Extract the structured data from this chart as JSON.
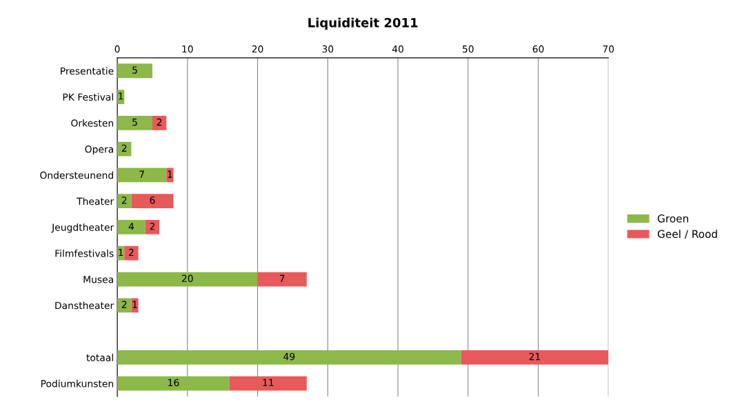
{
  "chart_data": {
    "type": "bar",
    "title": "Liquiditeit 2011",
    "orientation": "horizontal",
    "stacked": true,
    "categories": [
      "Presentatie",
      "PK Festival",
      "Orkesten",
      "Opera",
      "Ondersteunend",
      "Theater",
      "Jeugdtheater",
      "Filmfestivals",
      "Musea",
      "Danstheater",
      null,
      "totaal",
      "Podiumkunsten"
    ],
    "series": [
      {
        "name": "Groen",
        "color": "#8db84a",
        "values": [
          5,
          1,
          5,
          2,
          7,
          2,
          4,
          1,
          20,
          2,
          null,
          49,
          16
        ]
      },
      {
        "name": "Geel / Rood",
        "color": "#e8595a",
        "values": [
          null,
          null,
          2,
          null,
          1,
          6,
          2,
          2,
          7,
          1,
          null,
          21,
          11
        ]
      }
    ],
    "xlim": [
      0,
      70
    ],
    "xticks": [
      0,
      10,
      20,
      30,
      40,
      50,
      60,
      70
    ],
    "grid": "x",
    "legend": "right",
    "data_labels": true
  }
}
